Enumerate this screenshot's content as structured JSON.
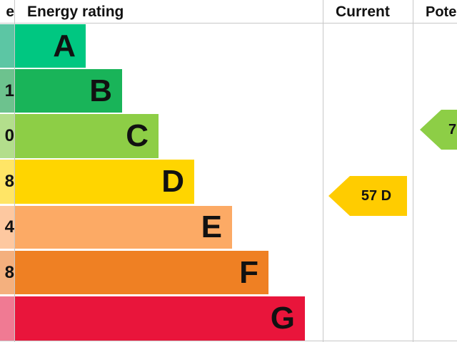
{
  "header": {
    "score_label": "e",
    "rating_label": "Energy rating",
    "current_label": "Current",
    "potential_label": "Pote"
  },
  "chart_data": {
    "type": "bar",
    "categories": [
      "A",
      "B",
      "C",
      "D",
      "E",
      "F",
      "G"
    ],
    "score_fragments": [
      "",
      "1",
      "0",
      "8",
      "4",
      "8",
      ""
    ],
    "colors": [
      "#00c781",
      "#19b459",
      "#8dce46",
      "#ffd500",
      "#fcaa65",
      "#ef8023",
      "#e9153b"
    ],
    "score_colors": [
      "#5cc6a4",
      "#6dc28e",
      "#b3de8c",
      "#ffe566",
      "#fdc8a0",
      "#f4b07e",
      "#f07a93"
    ],
    "current": {
      "value": 57,
      "band": "D",
      "label": "57 D",
      "color": "#ffcc00"
    },
    "potential": {
      "label": "7",
      "band": "C",
      "color": "#8dce46"
    }
  }
}
